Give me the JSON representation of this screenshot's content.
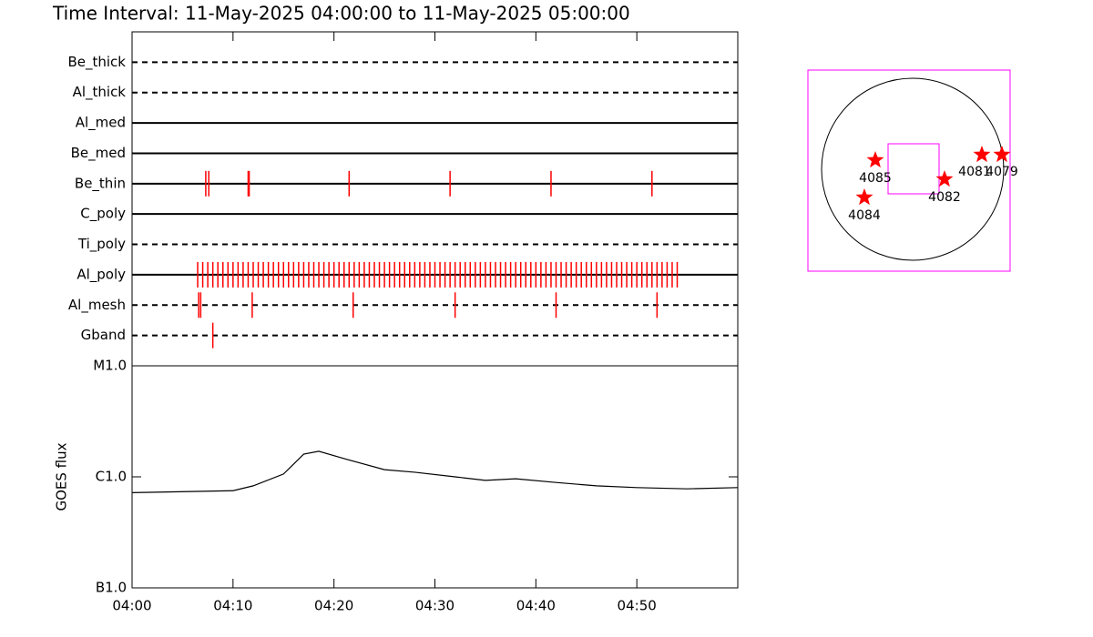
{
  "chart_data": [
    {
      "type": "event",
      "title": "Time Interval: 11-May-2025 04:00:00 to 11-May-2025 05:00:00",
      "xlim": [
        0,
        60
      ],
      "color": "#ff0000",
      "rows": [
        {
          "name": "Be_thick",
          "line_style": "dashed",
          "times": []
        },
        {
          "name": "Al_thick",
          "line_style": "dashed",
          "times": []
        },
        {
          "name": "Al_med",
          "line_style": "solid",
          "times": []
        },
        {
          "name": "Be_med",
          "line_style": "solid",
          "times": []
        },
        {
          "name": "Be_thin",
          "line_style": "solid",
          "times": [
            7.3,
            7.6,
            11.5,
            11.6,
            21.5,
            31.5,
            41.5,
            51.5
          ]
        },
        {
          "name": "C_poly",
          "line_style": "solid",
          "times": []
        },
        {
          "name": "Ti_poly",
          "line_style": "dashed",
          "times": []
        },
        {
          "name": "Al_poly",
          "line_style": "solid",
          "times": [
            6.5,
            7,
            7.5,
            8,
            8.5,
            9,
            9.5,
            10,
            10.5,
            11,
            11.5,
            12,
            12.5,
            13,
            13.5,
            14,
            14.5,
            15,
            15.5,
            16,
            16.5,
            17,
            17.5,
            18,
            18.5,
            19,
            19.5,
            20,
            20.5,
            21,
            21.5,
            22,
            22.5,
            23,
            23.5,
            24,
            24.5,
            25,
            25.5,
            26,
            26.5,
            27,
            27.5,
            28,
            28.5,
            29,
            29.5,
            30,
            30.5,
            31,
            31.5,
            32,
            32.5,
            33,
            33.5,
            34,
            34.5,
            35,
            35.5,
            36,
            36.5,
            37,
            37.5,
            38,
            38.5,
            39,
            39.5,
            40,
            40.5,
            41,
            41.5,
            42,
            42.5,
            43,
            43.5,
            44,
            44.5,
            45,
            45.5,
            46,
            46.5,
            47,
            47.5,
            48,
            48.5,
            49,
            49.5,
            50,
            50.5,
            51,
            51.5,
            52,
            52.5,
            53,
            53.5,
            54
          ]
        },
        {
          "name": "Al_mesh",
          "line_style": "dashed",
          "times": [
            6.6,
            6.8,
            11.9,
            21.9,
            32.0,
            42.0,
            52.0
          ]
        },
        {
          "name": "Gband",
          "line_style": "dashed",
          "times": [
            8.0
          ]
        }
      ]
    },
    {
      "type": "line",
      "y_label": "GOES flux",
      "log_scale": true,
      "color": "#000000",
      "xlim": [
        0,
        60
      ],
      "xticks": [
        {
          "value": 0,
          "label": "04:00"
        },
        {
          "value": 10,
          "label": "04:10"
        },
        {
          "value": 20,
          "label": "04:20"
        },
        {
          "value": 30,
          "label": "04:30"
        },
        {
          "value": 40,
          "label": "04:40"
        },
        {
          "value": 50,
          "label": "04:50"
        }
      ],
      "ylim": [
        1e-07,
        1e-05
      ],
      "yticks": [
        {
          "value": 1e-07,
          "label": "B1.0"
        },
        {
          "value": 1e-06,
          "label": "C1.0"
        },
        {
          "value": 1e-05,
          "label": "M1.0"
        }
      ],
      "x": [
        0,
        10,
        12,
        15,
        17,
        18.5,
        21,
        25,
        28,
        32,
        35,
        38,
        42,
        46,
        50,
        55,
        60
      ],
      "values": [
        7.2e-07,
        7.5e-07,
        8.3e-07,
        1.06e-06,
        1.6e-06,
        1.7e-06,
        1.46e-06,
        1.16e-06,
        1.1e-06,
        1e-06,
        9.3e-07,
        9.6e-07,
        8.9e-07,
        8.3e-07,
        8e-07,
        7.8e-07,
        8e-07
      ]
    }
  ],
  "map": {
    "box_color": "#ff00ff",
    "star_color": "#ff0000",
    "regions": [
      "4085",
      "4084",
      "4082",
      "4081",
      "4079"
    ]
  }
}
